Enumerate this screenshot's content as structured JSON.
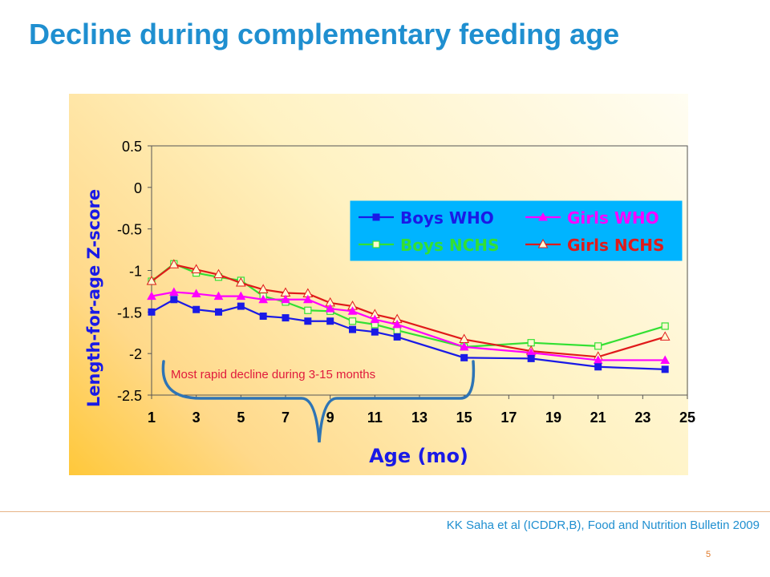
{
  "slide": {
    "title": "Decline during complementary feeding age",
    "citation": "KK Saha et al (ICDDR,B), Food and Nutrition Bulletin 2009",
    "page_number": "5"
  },
  "chart_data": {
    "type": "line",
    "xlabel": "Age (mo)",
    "ylabel": "Length-for-age Z-score",
    "xlim": [
      1,
      25
    ],
    "ylim": [
      -2.5,
      0.5
    ],
    "x_ticks": [
      1,
      3,
      5,
      7,
      9,
      11,
      13,
      15,
      17,
      19,
      21,
      23,
      25
    ],
    "y_ticks": [
      0.5,
      0,
      -0.5,
      -1,
      -1.5,
      -2,
      -2.5
    ],
    "y_tick_labels": [
      "0.5",
      "0",
      "-0.5",
      "-1",
      "-1.5",
      "-2",
      "-2.5"
    ],
    "grid": false,
    "legend_position": "top-right",
    "annotation": "Most rapid decline during 3-15 months",
    "series": [
      {
        "name": "Boys WHO",
        "color": "#1a1ae6",
        "marker": "filled-square",
        "x": [
          1,
          2,
          3,
          4,
          5,
          6,
          7,
          8,
          9,
          10,
          11,
          12,
          15,
          18,
          21,
          24
        ],
        "values": [
          -1.5,
          -1.35,
          -1.47,
          -1.5,
          -1.43,
          -1.55,
          -1.57,
          -1.61,
          -1.61,
          -1.71,
          -1.74,
          -1.8,
          -2.05,
          -2.06,
          -2.16,
          -2.19
        ]
      },
      {
        "name": "Girls WHO",
        "color": "#ff00ff",
        "marker": "filled-triangle",
        "x": [
          1,
          2,
          3,
          4,
          5,
          6,
          7,
          8,
          9,
          10,
          11,
          12,
          15,
          18,
          21,
          24
        ],
        "values": [
          -1.31,
          -1.26,
          -1.28,
          -1.31,
          -1.31,
          -1.35,
          -1.35,
          -1.35,
          -1.46,
          -1.49,
          -1.59,
          -1.65,
          -1.92,
          -1.99,
          -2.08,
          -2.08
        ]
      },
      {
        "name": "Boys NCHS",
        "color": "#33e033",
        "marker": "open-square",
        "x": [
          1,
          2,
          3,
          4,
          5,
          6,
          7,
          8,
          9,
          10,
          11,
          12,
          15,
          18,
          21,
          24
        ],
        "values": [
          -1.13,
          -0.92,
          -1.03,
          -1.08,
          -1.12,
          -1.31,
          -1.38,
          -1.48,
          -1.49,
          -1.61,
          -1.65,
          -1.72,
          -1.92,
          -1.87,
          -1.91,
          -1.67
        ]
      },
      {
        "name": "Girls NCHS",
        "color": "#e01a1a",
        "marker": "open-triangle",
        "x": [
          1,
          2,
          3,
          4,
          5,
          6,
          7,
          8,
          9,
          10,
          11,
          12,
          15,
          18,
          21,
          24
        ],
        "values": [
          -1.13,
          -0.93,
          -0.99,
          -1.05,
          -1.15,
          -1.23,
          -1.27,
          -1.28,
          -1.39,
          -1.43,
          -1.53,
          -1.59,
          -1.83,
          -1.97,
          -2.04,
          -1.8
        ]
      }
    ]
  }
}
